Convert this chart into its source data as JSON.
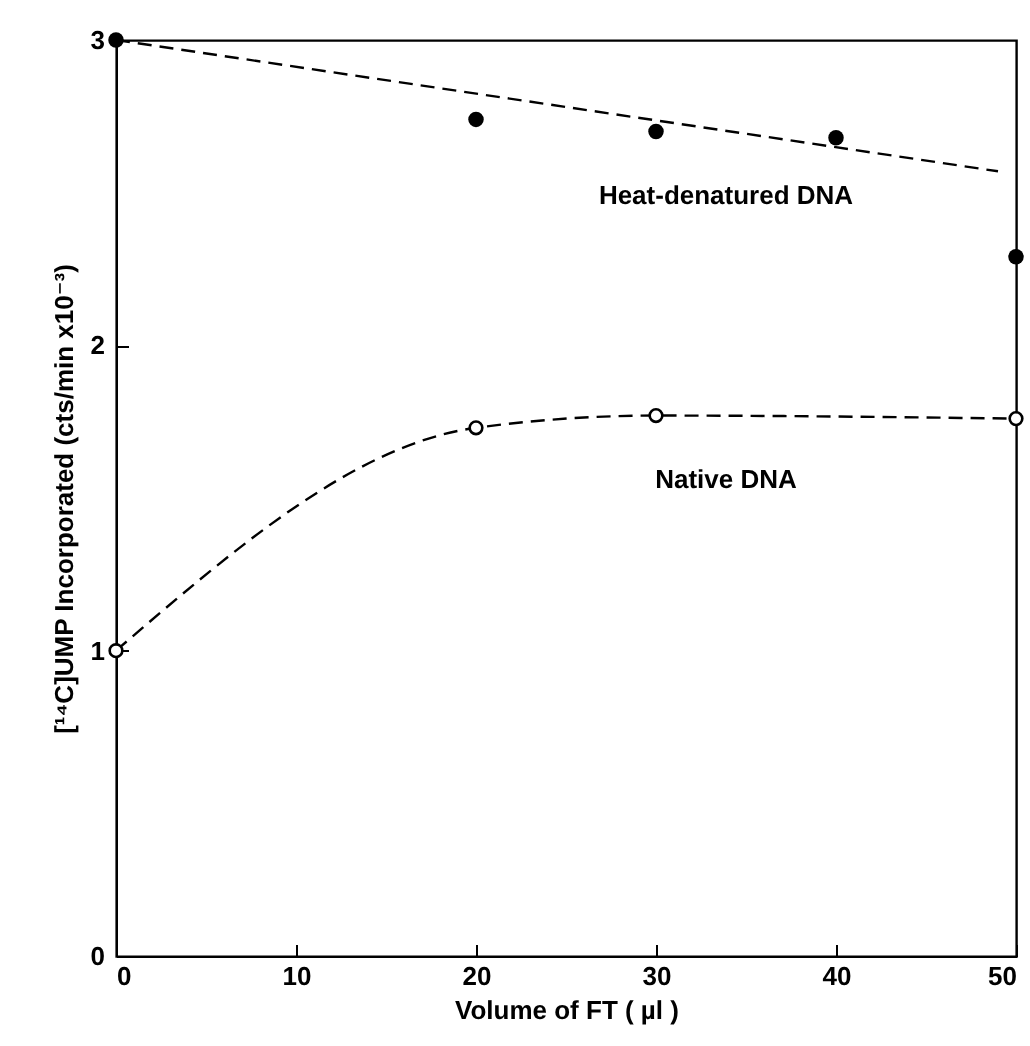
{
  "chart_data": {
    "type": "scatter",
    "xlabel": "Volume of FT ( µl )",
    "ylabel": "[¹⁴C]UMP Incorporated (cts/min x10⁻³)",
    "xlim": [
      0,
      50
    ],
    "xticks": [
      0,
      10,
      20,
      30,
      40,
      50
    ],
    "ylim": [
      0,
      3
    ],
    "yticks": [
      0,
      1,
      2,
      3
    ],
    "grid": false,
    "series": [
      {
        "name": "Heat-denatured DNA",
        "type": "scatter",
        "color": "#000000",
        "marker": "circle",
        "x": [
          0,
          20,
          30,
          40,
          50
        ],
        "values": [
          3.0,
          2.74,
          2.7,
          2.68,
          2.29
        ]
      },
      {
        "type": "line",
        "color": "#000000",
        "line_style": "dashed",
        "marker": "none",
        "x": [
          0,
          49
        ],
        "values": [
          3.0,
          2.57
        ]
      },
      {
        "name": "Native DNA",
        "type": "line",
        "color": "#000000",
        "line_style": "dashed",
        "marker": "circle",
        "x": [
          0,
          20,
          30,
          50
        ],
        "values": [
          1.0,
          1.73,
          1.77,
          1.76
        ]
      }
    ]
  }
}
